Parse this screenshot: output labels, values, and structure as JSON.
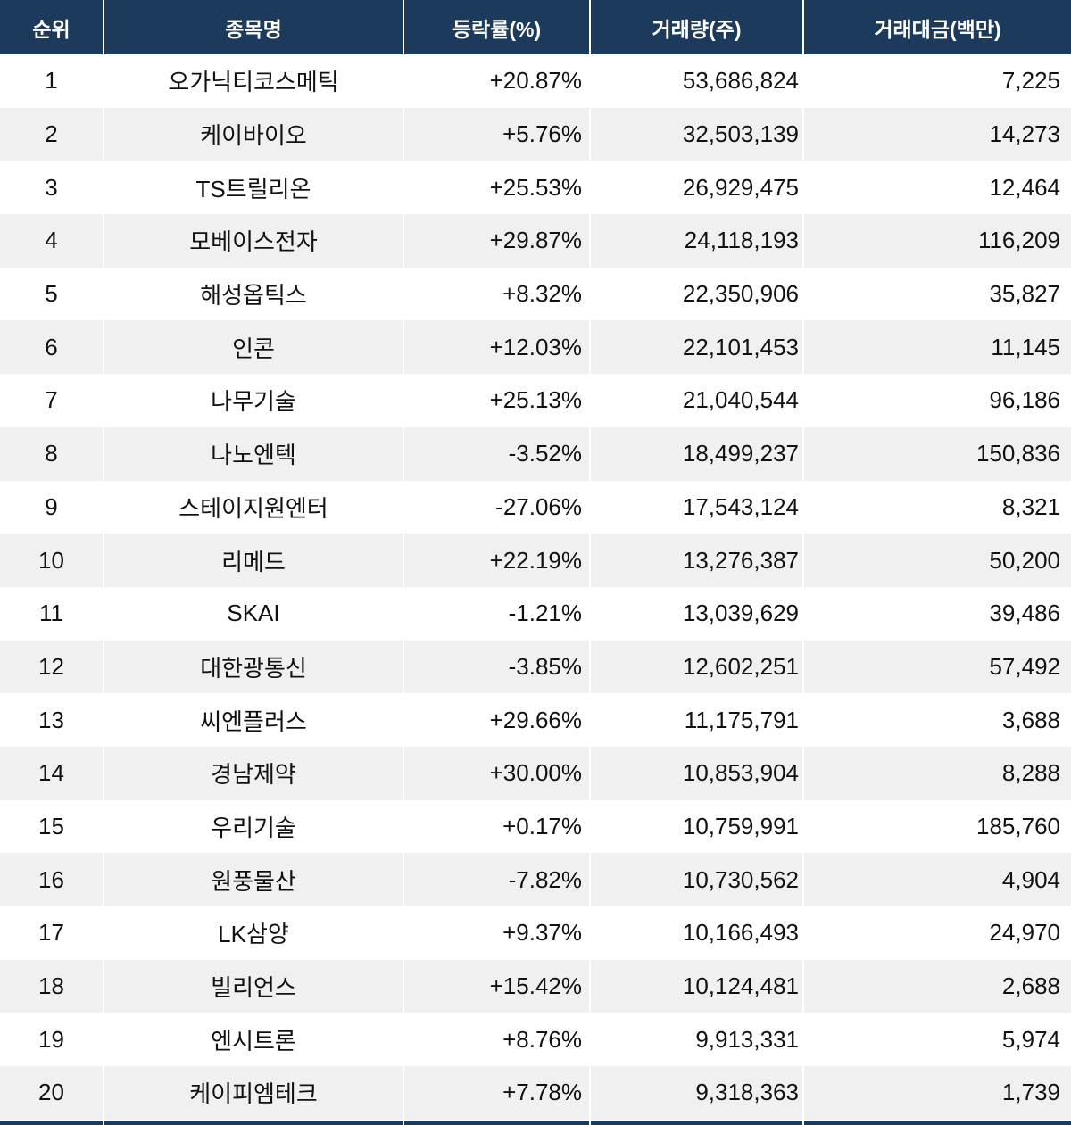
{
  "chart_data": {
    "type": "table",
    "title": "",
    "columns": [
      "순위",
      "종목명",
      "등락률(%)",
      "거래량(주)",
      "거래대금(백만)"
    ],
    "rows": [
      [
        "1",
        "오가닉티코스메틱",
        "+20.87%",
        "53,686,824",
        "7,225"
      ],
      [
        "2",
        "케이바이오",
        "+5.76%",
        "32,503,139",
        "14,273"
      ],
      [
        "3",
        "TS트릴리온",
        "+25.53%",
        "26,929,475",
        "12,464"
      ],
      [
        "4",
        "모베이스전자",
        "+29.87%",
        "24,118,193",
        "116,209"
      ],
      [
        "5",
        "해성옵틱스",
        "+8.32%",
        "22,350,906",
        "35,827"
      ],
      [
        "6",
        "인콘",
        "+12.03%",
        "22,101,453",
        "11,145"
      ],
      [
        "7",
        "나무기술",
        "+25.13%",
        "21,040,544",
        "96,186"
      ],
      [
        "8",
        "나노엔텍",
        "-3.52%",
        "18,499,237",
        "150,836"
      ],
      [
        "9",
        "스테이지원엔터",
        "-27.06%",
        "17,543,124",
        "8,321"
      ],
      [
        "10",
        "리메드",
        "+22.19%",
        "13,276,387",
        "50,200"
      ],
      [
        "11",
        "SKAI",
        "-1.21%",
        "13,039,629",
        "39,486"
      ],
      [
        "12",
        "대한광통신",
        "-3.85%",
        "12,602,251",
        "57,492"
      ],
      [
        "13",
        "씨엔플러스",
        "+29.66%",
        "11,175,791",
        "3,688"
      ],
      [
        "14",
        "경남제약",
        "+30.00%",
        "10,853,904",
        "8,288"
      ],
      [
        "15",
        "우리기술",
        "+0.17%",
        "10,759,991",
        "185,760"
      ],
      [
        "16",
        "원풍물산",
        "-7.82%",
        "10,730,562",
        "4,904"
      ],
      [
        "17",
        "LK삼양",
        "+9.37%",
        "10,166,493",
        "24,970"
      ],
      [
        "18",
        "빌리언스",
        "+15.42%",
        "10,124,481",
        "2,688"
      ],
      [
        "19",
        "엔시트론",
        "+8.76%",
        "9,913,331",
        "5,974"
      ],
      [
        "20",
        "케이피엠테크",
        "+7.78%",
        "9,318,363",
        "1,739"
      ]
    ],
    "layout_hints": {
      "row_striping": "even rows light gray",
      "alignment": [
        "center",
        "center",
        "right",
        "right",
        "right"
      ],
      "header_style": "dark navy background, white bold text",
      "partial_next_header_visible_at_bottom": true
    }
  },
  "colors": {
    "header_bg": "#1b3a5c",
    "header_text": "#ffffff",
    "row_bg": "#ffffff",
    "row_alt_bg": "#f0f0f0",
    "divider": "#ffffff",
    "body_text": "#111111"
  }
}
